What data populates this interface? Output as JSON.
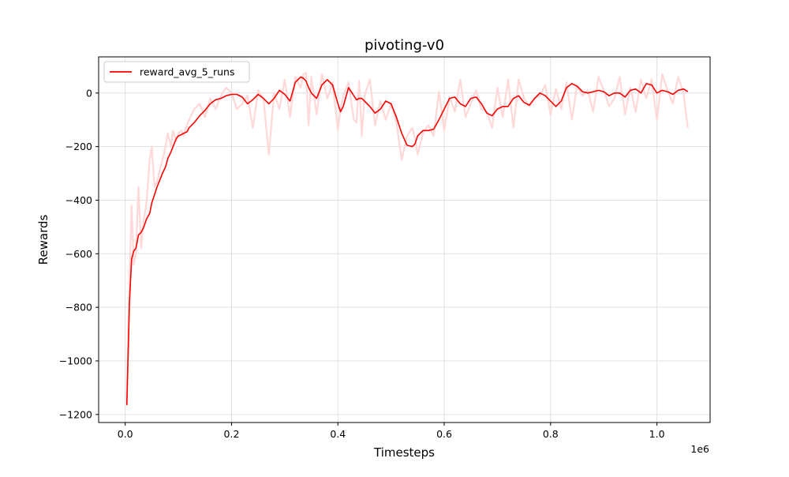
{
  "chart_data": {
    "type": "line",
    "title": "pivoting-v0",
    "xlabel": "Timesteps",
    "ylabel": "Rewards",
    "x_offset_label": "1e6",
    "xlim": [
      -0.05,
      1.1
    ],
    "ylim": [
      -1230,
      135
    ],
    "xticks": [
      0.0,
      0.2,
      0.4,
      0.6,
      0.8,
      1.0
    ],
    "xtick_labels": [
      "0.0",
      "0.2",
      "0.4",
      "0.6",
      "0.8",
      "1.0"
    ],
    "yticks": [
      -1200,
      -1000,
      -800,
      -600,
      -400,
      -200,
      0
    ],
    "ytick_labels": [
      "−1200",
      "−1000",
      "−800",
      "−600",
      "−400",
      "−200",
      "0"
    ],
    "grid": true,
    "legend_position": "upper-left",
    "colors": {
      "main": "#ff0000",
      "raw": "#ffd8d8",
      "grid": "#e0e0e0",
      "axes": "#000000"
    },
    "series": [
      {
        "name": "reward_avg_5_runs",
        "x": [
          0.003,
          0.008,
          0.012,
          0.016,
          0.02,
          0.025,
          0.03,
          0.035,
          0.04,
          0.046,
          0.05,
          0.055,
          0.06,
          0.066,
          0.07,
          0.076,
          0.08,
          0.086,
          0.09,
          0.096,
          0.1,
          0.106,
          0.11,
          0.116,
          0.12,
          0.13,
          0.14,
          0.15,
          0.16,
          0.17,
          0.18,
          0.19,
          0.2,
          0.21,
          0.22,
          0.23,
          0.24,
          0.25,
          0.26,
          0.27,
          0.28,
          0.29,
          0.3,
          0.31,
          0.32,
          0.33,
          0.335,
          0.34,
          0.345,
          0.35,
          0.36,
          0.37,
          0.38,
          0.39,
          0.4,
          0.405,
          0.41,
          0.42,
          0.43,
          0.435,
          0.44,
          0.445,
          0.45,
          0.46,
          0.47,
          0.48,
          0.49,
          0.5,
          0.51,
          0.52,
          0.53,
          0.54,
          0.545,
          0.55,
          0.56,
          0.57,
          0.58,
          0.59,
          0.6,
          0.61,
          0.62,
          0.63,
          0.64,
          0.65,
          0.66,
          0.67,
          0.68,
          0.69,
          0.7,
          0.71,
          0.72,
          0.73,
          0.74,
          0.75,
          0.76,
          0.77,
          0.78,
          0.79,
          0.8,
          0.81,
          0.82,
          0.83,
          0.84,
          0.85,
          0.86,
          0.87,
          0.88,
          0.89,
          0.9,
          0.91,
          0.92,
          0.93,
          0.94,
          0.95,
          0.96,
          0.97,
          0.98,
          0.99,
          1.0,
          1.01,
          1.02,
          1.03,
          1.04,
          1.05,
          1.058
        ],
        "y": [
          -1165,
          -780,
          -620,
          -590,
          -580,
          -530,
          -520,
          -500,
          -470,
          -450,
          -410,
          -380,
          -350,
          -320,
          -300,
          -275,
          -245,
          -220,
          -200,
          -170,
          -160,
          -155,
          -150,
          -145,
          -130,
          -110,
          -85,
          -65,
          -40,
          -25,
          -20,
          -10,
          -5,
          -5,
          -15,
          -40,
          -25,
          -5,
          -20,
          -40,
          -20,
          10,
          -5,
          -30,
          40,
          60,
          55,
          45,
          20,
          0,
          -20,
          30,
          50,
          30,
          -40,
          -70,
          -50,
          20,
          -10,
          -25,
          -20,
          -20,
          -30,
          -50,
          -75,
          -60,
          -30,
          -40,
          -90,
          -150,
          -195,
          -200,
          -190,
          -160,
          -140,
          -140,
          -135,
          -100,
          -60,
          -20,
          -15,
          -40,
          -50,
          -20,
          -15,
          -40,
          -75,
          -85,
          -60,
          -50,
          -50,
          -20,
          -10,
          -35,
          -45,
          -20,
          0,
          -10,
          -30,
          -50,
          -30,
          20,
          35,
          25,
          5,
          0,
          5,
          10,
          5,
          -10,
          0,
          0,
          -15,
          10,
          15,
          0,
          35,
          30,
          0,
          10,
          5,
          -5,
          10,
          15,
          5
        ]
      },
      {
        "name": "",
        "x": [
          0.003,
          0.008,
          0.012,
          0.016,
          0.02,
          0.025,
          0.03,
          0.035,
          0.04,
          0.046,
          0.05,
          0.055,
          0.06,
          0.066,
          0.07,
          0.076,
          0.08,
          0.086,
          0.09,
          0.096,
          0.1,
          0.106,
          0.11,
          0.116,
          0.12,
          0.13,
          0.14,
          0.15,
          0.16,
          0.17,
          0.18,
          0.19,
          0.2,
          0.21,
          0.22,
          0.23,
          0.24,
          0.25,
          0.26,
          0.27,
          0.28,
          0.29,
          0.3,
          0.31,
          0.32,
          0.33,
          0.335,
          0.34,
          0.345,
          0.35,
          0.36,
          0.37,
          0.38,
          0.39,
          0.4,
          0.405,
          0.41,
          0.42,
          0.43,
          0.435,
          0.44,
          0.445,
          0.45,
          0.46,
          0.47,
          0.48,
          0.49,
          0.5,
          0.51,
          0.52,
          0.53,
          0.54,
          0.545,
          0.55,
          0.56,
          0.57,
          0.58,
          0.59,
          0.6,
          0.61,
          0.62,
          0.63,
          0.64,
          0.65,
          0.66,
          0.67,
          0.68,
          0.69,
          0.7,
          0.71,
          0.72,
          0.73,
          0.74,
          0.75,
          0.76,
          0.77,
          0.78,
          0.79,
          0.8,
          0.81,
          0.82,
          0.83,
          0.84,
          0.85,
          0.86,
          0.87,
          0.88,
          0.89,
          0.9,
          0.91,
          0.92,
          0.93,
          0.94,
          0.95,
          0.96,
          0.97,
          0.98,
          0.99,
          1.0,
          1.01,
          1.02,
          1.03,
          1.04,
          1.05,
          1.058
        ],
        "y": [
          -1160,
          -700,
          -420,
          -640,
          -600,
          -350,
          -580,
          -470,
          -410,
          -250,
          -200,
          -350,
          -330,
          -280,
          -250,
          -200,
          -150,
          -200,
          -140,
          -180,
          -150,
          -140,
          -160,
          -120,
          -100,
          -60,
          -40,
          -90,
          -20,
          -60,
          -10,
          20,
          0,
          -60,
          -40,
          -10,
          -130,
          10,
          -20,
          -230,
          0,
          -60,
          50,
          -90,
          60,
          20,
          70,
          75,
          -120,
          60,
          -80,
          70,
          -20,
          40,
          -140,
          -60,
          -10,
          40,
          -100,
          -110,
          45,
          -160,
          -10,
          50,
          -120,
          -30,
          -100,
          -40,
          -110,
          -250,
          -160,
          -130,
          -170,
          -230,
          -150,
          -120,
          -160,
          5,
          -140,
          -15,
          -70,
          50,
          -90,
          -40,
          10,
          -60,
          -70,
          -130,
          20,
          -90,
          50,
          -130,
          50,
          -20,
          -50,
          -20,
          -10,
          30,
          -80,
          15,
          -60,
          40,
          -100,
          30,
          -10,
          10,
          -70,
          60,
          10,
          -50,
          -20,
          60,
          -80,
          20,
          -70,
          50,
          -20,
          50,
          -100,
          70,
          10,
          -40,
          60,
          0,
          -130
        ]
      }
    ]
  }
}
